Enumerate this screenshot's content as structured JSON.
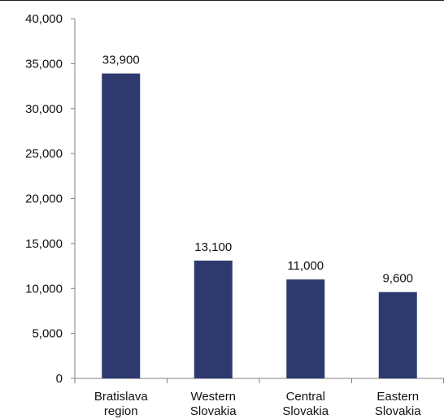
{
  "chart_data": {
    "type": "bar",
    "categories": [
      [
        "Bratislava",
        "region"
      ],
      [
        "Western",
        "Slovakia"
      ],
      [
        "Central",
        "Slovakia"
      ],
      [
        "Eastern",
        "Slovakia"
      ]
    ],
    "values": [
      33900,
      13100,
      11000,
      9600
    ],
    "data_labels": [
      "33,900",
      "13,100",
      "11,000",
      "9,600"
    ],
    "y_ticks": [
      {
        "value": 0,
        "label": "0"
      },
      {
        "value": 5000,
        "label": "5,000"
      },
      {
        "value": 10000,
        "label": "10,000"
      },
      {
        "value": 15000,
        "label": "15,000"
      },
      {
        "value": 20000,
        "label": "20,000"
      },
      {
        "value": 25000,
        "label": "25,000"
      },
      {
        "value": 30000,
        "label": "30,000"
      },
      {
        "value": 35000,
        "label": "35,000"
      },
      {
        "value": 40000,
        "label": "40,000"
      }
    ],
    "ylim": [
      0,
      40000
    ],
    "title": "",
    "xlabel": "",
    "ylabel": "",
    "grid": false,
    "legend": "none",
    "bar_color": "#2e3a6e",
    "axis_color": "#7f7f7f"
  }
}
